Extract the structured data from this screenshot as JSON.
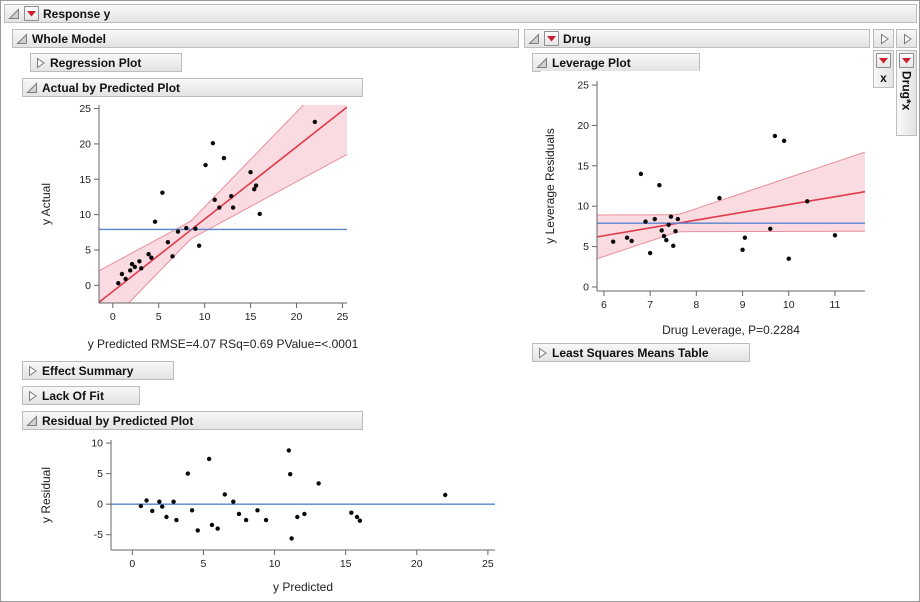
{
  "colors": {
    "fit": "#e0394a",
    "band": "#f6ccd4",
    "band_edge": "#ea8e9b",
    "mean": "#5784cd",
    "red_triangle": "#cf2030"
  },
  "response": {
    "title": "Response y"
  },
  "whole_model": {
    "title": "Whole Model",
    "sections": {
      "regression_plot": "Regression Plot",
      "actual_by_predicted": "Actual by Predicted Plot",
      "effect_summary": "Effect Summary",
      "lack_of_fit": "Lack Of Fit",
      "residual_by_predicted": "Residual by Predicted Plot"
    }
  },
  "drug_effect": {
    "title": "Drug",
    "sections": {
      "leverage_plot": "Leverage Plot",
      "least_squares_means": "Least Squares Means Table"
    }
  },
  "side_tabs": {
    "x": "x",
    "drug_x": "Drug*x"
  },
  "chart_data": [
    {
      "type": "scatter",
      "title": "Actual by Predicted Plot",
      "xlabel": "y Predicted RMSE=4.07 RSq=0.69 PValue=<.0001",
      "ylabel": "y Actual",
      "xlim": [
        -1.5,
        25.5
      ],
      "ylim": [
        -2.5,
        25.5
      ],
      "xticks": [
        0,
        5,
        10,
        15,
        20,
        25
      ],
      "yticks": [
        0,
        5,
        10,
        15,
        20,
        25
      ],
      "grid": false,
      "legend": "none",
      "hline": 7.9,
      "fit": {
        "x0": -1.5,
        "y0": -2.4,
        "x1": 25.5,
        "y1": 25.2
      },
      "band": {
        "cx": 8.5,
        "half": 1.25,
        "grow": 0.32
      },
      "points": [
        [
          0.6,
          0.3
        ],
        [
          1.0,
          1.6
        ],
        [
          1.4,
          0.9
        ],
        [
          1.9,
          2.1
        ],
        [
          2.1,
          3.0
        ],
        [
          2.4,
          2.6
        ],
        [
          2.9,
          3.4
        ],
        [
          3.1,
          2.4
        ],
        [
          3.9,
          4.4
        ],
        [
          4.2,
          3.9
        ],
        [
          4.6,
          9.0
        ],
        [
          5.4,
          13.1
        ],
        [
          6.0,
          6.1
        ],
        [
          6.5,
          4.1
        ],
        [
          7.1,
          7.6
        ],
        [
          8.0,
          8.1
        ],
        [
          9.0,
          8.0
        ],
        [
          9.4,
          5.6
        ],
        [
          10.1,
          17.0
        ],
        [
          10.9,
          20.1
        ],
        [
          11.1,
          12.1
        ],
        [
          11.6,
          11.0
        ],
        [
          12.1,
          18.0
        ],
        [
          12.9,
          12.6
        ],
        [
          13.1,
          11.0
        ],
        [
          15.0,
          16.0
        ],
        [
          15.4,
          13.6
        ],
        [
          15.6,
          14.1
        ],
        [
          16.0,
          10.1
        ],
        [
          22.0,
          23.1
        ]
      ]
    },
    {
      "type": "scatter",
      "title": "Leverage Plot",
      "xlabel": "Drug Leverage, P=0.2284",
      "ylabel": "y Leverage Residuals",
      "xlim": [
        5.85,
        11.65
      ],
      "ylim": [
        -0.5,
        25.5
      ],
      "xticks": [
        6,
        7,
        8,
        9,
        10,
        11
      ],
      "yticks": [
        0,
        5,
        10,
        15,
        20,
        25
      ],
      "grid": false,
      "legend": "none",
      "hline": 7.9,
      "fit": {
        "x0": 5.85,
        "y0": 6.2,
        "x1": 11.65,
        "y1": 11.8
      },
      "band": {
        "cx": 7.6,
        "half": 1.05,
        "grow": 0.95
      },
      "points": [
        [
          6.2,
          5.6
        ],
        [
          6.5,
          6.1
        ],
        [
          6.6,
          5.7
        ],
        [
          6.8,
          14.0
        ],
        [
          6.9,
          8.1
        ],
        [
          7.0,
          4.2
        ],
        [
          7.1,
          8.4
        ],
        [
          7.2,
          12.6
        ],
        [
          7.25,
          7.0
        ],
        [
          7.3,
          6.3
        ],
        [
          7.35,
          5.8
        ],
        [
          7.4,
          7.7
        ],
        [
          7.45,
          8.7
        ],
        [
          7.5,
          5.1
        ],
        [
          7.55,
          6.9
        ],
        [
          7.6,
          8.4
        ],
        [
          8.5,
          11.0
        ],
        [
          9.0,
          4.6
        ],
        [
          9.05,
          6.1
        ],
        [
          9.6,
          7.2
        ],
        [
          9.7,
          18.7
        ],
        [
          9.9,
          18.1
        ],
        [
          10.0,
          3.5
        ],
        [
          10.4,
          10.6
        ],
        [
          11.0,
          6.4
        ]
      ]
    },
    {
      "type": "scatter",
      "title": "Residual by Predicted Plot",
      "xlabel": "y Predicted",
      "ylabel": "y Residual",
      "xlim": [
        -1.5,
        25.5
      ],
      "ylim": [
        -7.5,
        10.5
      ],
      "xticks": [
        0,
        5,
        10,
        15,
        20,
        25
      ],
      "yticks": [
        -5,
        0,
        5,
        10
      ],
      "grid": false,
      "legend": "none",
      "hline": 0,
      "fit": null,
      "band": null,
      "points": [
        [
          0.6,
          -0.3
        ],
        [
          1.0,
          0.6
        ],
        [
          1.4,
          -1.1
        ],
        [
          1.9,
          0.4
        ],
        [
          2.1,
          -0.4
        ],
        [
          2.4,
          -2.1
        ],
        [
          2.9,
          0.4
        ],
        [
          3.1,
          -2.6
        ],
        [
          3.9,
          5.0
        ],
        [
          4.2,
          -1.0
        ],
        [
          4.6,
          -4.3
        ],
        [
          5.4,
          7.4
        ],
        [
          5.6,
          -3.4
        ],
        [
          6.0,
          -4.0
        ],
        [
          6.5,
          1.6
        ],
        [
          7.1,
          0.4
        ],
        [
          7.5,
          -1.6
        ],
        [
          8.0,
          -2.6
        ],
        [
          8.8,
          -1.0
        ],
        [
          9.4,
          -2.6
        ],
        [
          11.0,
          8.8
        ],
        [
          11.1,
          4.9
        ],
        [
          11.2,
          -5.6
        ],
        [
          11.6,
          -2.1
        ],
        [
          12.1,
          -1.6
        ],
        [
          13.1,
          3.4
        ],
        [
          15.4,
          -1.4
        ],
        [
          15.8,
          -2.1
        ],
        [
          16.0,
          -2.7
        ],
        [
          22.0,
          1.5
        ]
      ]
    }
  ]
}
